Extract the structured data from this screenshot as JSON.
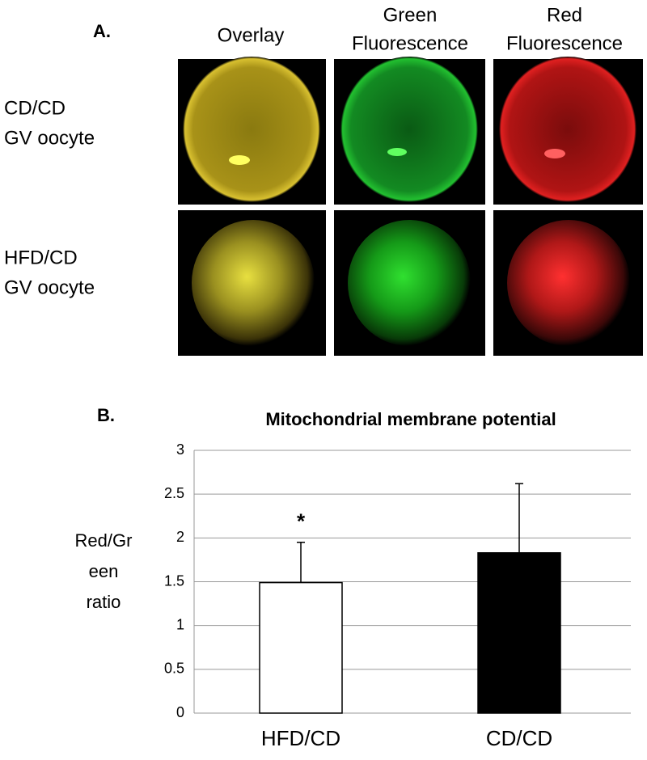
{
  "panel_a": {
    "label": "A.",
    "headers": [
      [
        "Overlay"
      ],
      [
        "Green",
        "Fluorescence"
      ],
      [
        "Red",
        "Fluorescence"
      ]
    ],
    "rows": [
      [
        "CD/CD",
        "GV oocyte"
      ],
      [
        "HFD/CD",
        "GV oocyte"
      ]
    ]
  },
  "chart_data": {
    "type": "bar",
    "panel_label": "B.",
    "title": "Mitochondrial membrane potential",
    "ylabel": [
      "Red/Gr",
      "een",
      "ratio"
    ],
    "categories": [
      "HFD/CD",
      "CD/CD"
    ],
    "values": [
      1.49,
      1.83
    ],
    "errors": [
      0.46,
      0.79
    ],
    "colors": [
      "#ffffff",
      "#000000"
    ],
    "annotation": "*",
    "ylim": [
      0,
      3
    ],
    "yticks": [
      0,
      0.5,
      1,
      1.5,
      2,
      2.5,
      3
    ],
    "grid": true
  }
}
